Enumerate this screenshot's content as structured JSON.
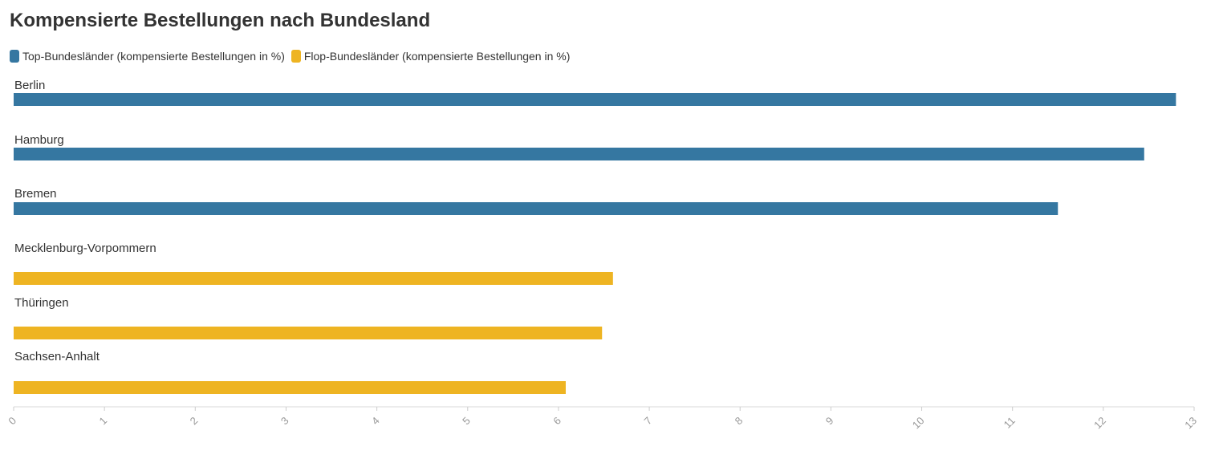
{
  "title": "Kompensierte Bestellungen nach Bundesland",
  "legend": {
    "top": {
      "label": "Top-Bundesländer (kompensierte Bestellungen in %)",
      "color": "#3577a1"
    },
    "flop": {
      "label": "Flop-Bundesländer (kompensierte Bestellungen in %)",
      "color": "#eeb422"
    }
  },
  "chart_data": {
    "type": "bar",
    "orientation": "horizontal",
    "title": "Kompensierte Bestellungen nach Bundesland",
    "xlim": [
      0,
      13
    ],
    "xticks": [
      "0",
      "1",
      "2",
      "3",
      "4",
      "5",
      "6",
      "7",
      "8",
      "9",
      "10",
      "11",
      "12",
      "13"
    ],
    "categories": [
      "Berlin",
      "Hamburg",
      "Bremen",
      "Mecklenburg-Vorpommern",
      "Thüringen",
      "Sachsen-Anhalt"
    ],
    "series": [
      {
        "name": "Top-Bundesländer (kompensierte Bestellungen in %)",
        "color": "#3577a1",
        "values": [
          12.8,
          12.45,
          11.5,
          null,
          null,
          null
        ]
      },
      {
        "name": "Flop-Bundesländer (kompensierte Bestellungen in %)",
        "color": "#eeb422",
        "values": [
          null,
          null,
          null,
          6.6,
          6.48,
          6.08
        ]
      }
    ],
    "legend": "top-left",
    "grid": false
  }
}
